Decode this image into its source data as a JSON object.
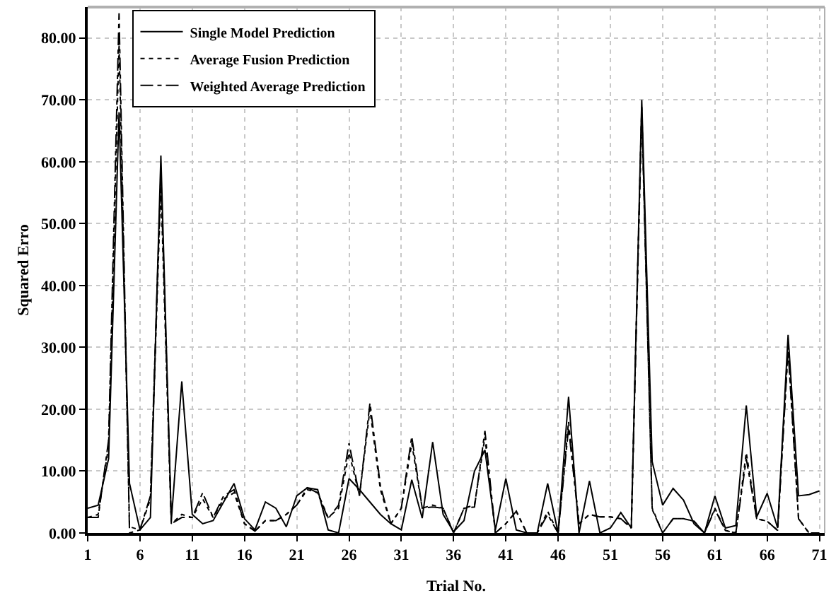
{
  "chart_data": {
    "type": "line",
    "xlabel": "Trial No.",
    "ylabel": "Squared Erro",
    "x": [
      1,
      2,
      3,
      4,
      5,
      6,
      7,
      8,
      9,
      10,
      11,
      12,
      13,
      14,
      15,
      16,
      17,
      18,
      19,
      20,
      21,
      22,
      23,
      24,
      25,
      26,
      27,
      28,
      29,
      30,
      31,
      32,
      33,
      34,
      35,
      36,
      37,
      38,
      39,
      40,
      41,
      42,
      43,
      44,
      45,
      46,
      47,
      48,
      49,
      50,
      51,
      52,
      53,
      54,
      55,
      56,
      57,
      58,
      59,
      60,
      61,
      62,
      63,
      64,
      65,
      66,
      67,
      68,
      69,
      70,
      71
    ],
    "series": [
      {
        "name": "Single Model Prediction",
        "color": "#000000",
        "line_style": "solid",
        "values": [
          4,
          4.5,
          12,
          68,
          8,
          0.5,
          2.5,
          61,
          2,
          24.5,
          3,
          1.5,
          2,
          5,
          8,
          2.3,
          0.5,
          5,
          4,
          1,
          6,
          7.3,
          7,
          0.5,
          0,
          8.8,
          7,
          5,
          3,
          1.5,
          0.5,
          8.6,
          2.4,
          14.7,
          3,
          0.2,
          2,
          10,
          13.4,
          0.5,
          8.8,
          0.5,
          0,
          0,
          8,
          0,
          22,
          0,
          8.4,
          0,
          0.8,
          3.3,
          0.8,
          70,
          11.5,
          4.5,
          7.2,
          5.3,
          1.5,
          0,
          6,
          0.8,
          1.2,
          20.6,
          2.6,
          6.4,
          0.8,
          32,
          6,
          6.2,
          6.8
        ]
      },
      {
        "name": "Average Fusion Prediction",
        "color": "#000000",
        "line_style": "dotted",
        "values": [
          2.5,
          3,
          14,
          79,
          1,
          0.5,
          5.5,
          56,
          1.5,
          3,
          2.5,
          5.5,
          2.5,
          5.5,
          6.5,
          1.5,
          0.3,
          2,
          2,
          3,
          4.5,
          7,
          6.5,
          2.5,
          4,
          13,
          6,
          20,
          7,
          1.5,
          4,
          14.5,
          4,
          4.5,
          4,
          0,
          4,
          4.5,
          15.5,
          0,
          1.5,
          3.5,
          0,
          0,
          3.5,
          0,
          18,
          1.5,
          3,
          2.6,
          2.6,
          2.3,
          0.8,
          69,
          4,
          0,
          2.3,
          2.3,
          1.9,
          0,
          4,
          0.4,
          0,
          13,
          2.3,
          1.9,
          0.4,
          30,
          2.3,
          0,
          0
        ]
      },
      {
        "name": "Weighted Average Prediction",
        "color": "#000000",
        "line_style": "dashed",
        "values": [
          2.5,
          2.5,
          15,
          84,
          0,
          0.5,
          6,
          58,
          1.5,
          2.5,
          2.5,
          6.5,
          2.5,
          6,
          7,
          1.5,
          0.3,
          2,
          2,
          3,
          4.5,
          7.3,
          6.5,
          2.3,
          4.5,
          14.5,
          6,
          21,
          7.6,
          1.5,
          4,
          15.6,
          4,
          4.2,
          4,
          0,
          4,
          4.2,
          16.5,
          0,
          1.5,
          3.5,
          0,
          0,
          3,
          0,
          17,
          1.5,
          3,
          2.6,
          2.6,
          2.3,
          0.8,
          68,
          3.8,
          0,
          2.3,
          2.3,
          1.9,
          0,
          3.8,
          0.4,
          0,
          12,
          2.3,
          1.9,
          0.4,
          29.6,
          2.3,
          0,
          0
        ]
      }
    ],
    "xlim": [
      1,
      71.5
    ],
    "xticks": [
      1,
      6,
      11,
      16,
      21,
      26,
      31,
      36,
      41,
      46,
      51,
      56,
      61,
      66,
      71
    ],
    "ylim": [
      0,
      85
    ],
    "yticks": [
      {
        "value": 0,
        "label": "0.00"
      },
      {
        "value": 10,
        "label": "10.00"
      },
      {
        "value": 20,
        "label": "20.00"
      },
      {
        "value": 30,
        "label": "30.00"
      },
      {
        "value": 40,
        "label": "40.00"
      },
      {
        "value": 50,
        "label": "50.00"
      },
      {
        "value": 60,
        "label": "60.00"
      },
      {
        "value": 70,
        "label": "70.00"
      },
      {
        "value": 80,
        "label": "80.00"
      }
    ],
    "grid": true,
    "legend": "top left",
    "marker": "none"
  }
}
